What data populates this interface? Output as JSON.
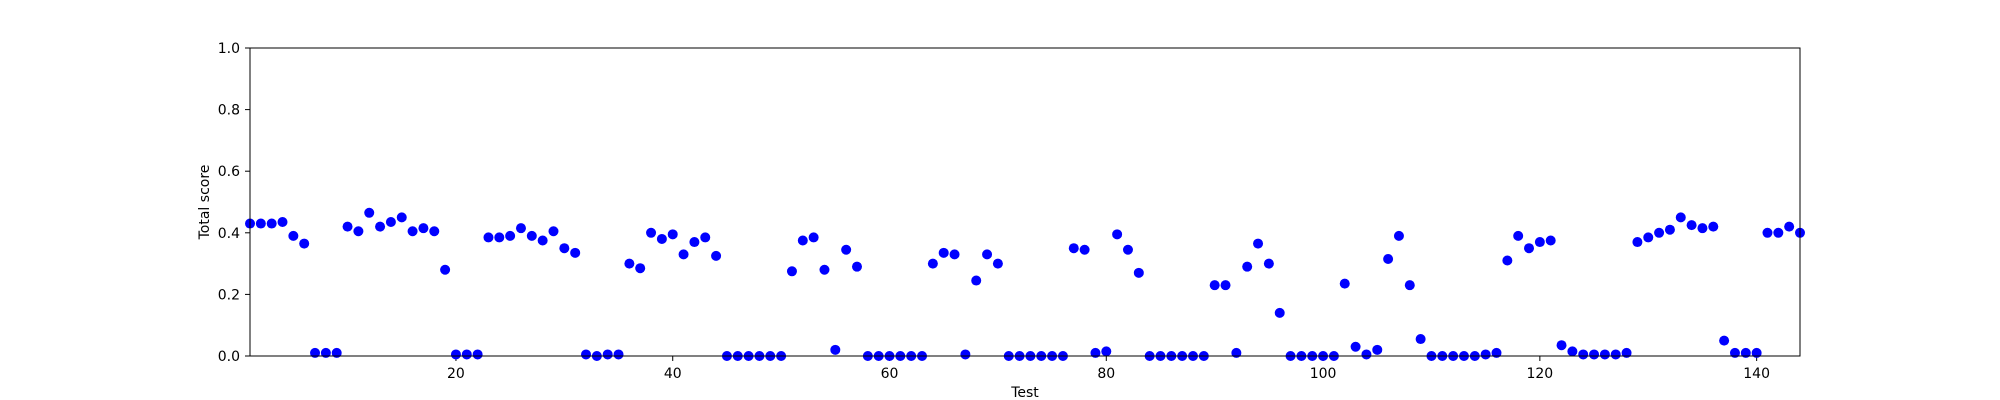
{
  "chart_data": {
    "type": "scatter",
    "xlabel": "Test",
    "ylabel": "Total score",
    "xlim": [
      1,
      144
    ],
    "ylim": [
      0.0,
      1.0
    ],
    "xticks": [
      20,
      40,
      60,
      80,
      100,
      120,
      140
    ],
    "xtick_labels": [
      "20",
      "40",
      "60",
      "80",
      "100",
      "120",
      "140"
    ],
    "yticks": [
      0.0,
      0.2,
      0.4,
      0.6,
      0.8,
      1.0
    ],
    "ytick_labels": [
      "0.0",
      "0.2",
      "0.4",
      "0.6",
      "0.8",
      "1.0"
    ],
    "grid": false,
    "marker_color": "#0000ff",
    "series": [
      {
        "x": [
          1,
          2,
          3,
          4,
          5,
          6,
          7,
          8,
          9,
          10,
          11,
          12,
          13,
          14,
          15,
          16,
          17,
          18,
          19,
          20,
          21,
          22,
          23,
          24,
          25,
          26,
          27,
          28,
          29,
          30,
          31,
          32,
          33,
          34,
          35,
          36,
          37,
          38,
          39,
          40,
          41,
          42,
          43,
          44,
          45,
          46,
          47,
          48,
          49,
          50,
          51,
          52,
          53,
          54,
          55,
          56,
          57,
          58,
          59,
          60,
          61,
          62,
          63,
          64,
          65,
          66,
          67,
          68,
          69,
          70,
          71,
          72,
          73,
          74,
          75,
          76,
          77,
          78,
          79,
          80,
          81,
          82,
          83,
          84,
          85,
          86,
          87,
          88,
          89,
          90,
          91,
          92,
          93,
          94,
          95,
          96,
          97,
          98,
          99,
          100,
          101,
          102,
          103,
          104,
          105,
          106,
          107,
          108,
          109,
          110,
          111,
          112,
          113,
          114,
          115,
          116,
          117,
          118,
          119,
          120,
          121,
          122,
          123,
          124,
          125,
          126,
          127,
          128,
          129,
          130,
          131,
          132,
          133,
          134,
          135,
          136,
          137,
          138,
          139,
          140,
          141,
          142,
          143,
          144
        ],
        "y": [
          0.43,
          0.43,
          0.43,
          0.435,
          0.39,
          0.365,
          0.01,
          0.01,
          0.01,
          0.42,
          0.405,
          0.465,
          0.42,
          0.435,
          0.45,
          0.405,
          0.415,
          0.405,
          0.28,
          0.005,
          0.005,
          0.005,
          0.385,
          0.385,
          0.39,
          0.415,
          0.39,
          0.375,
          0.405,
          0.35,
          0.335,
          0.005,
          0.0,
          0.005,
          0.005,
          0.3,
          0.285,
          0.4,
          0.38,
          0.395,
          0.33,
          0.37,
          0.385,
          0.325,
          0.0,
          0.0,
          0.0,
          0.0,
          0.0,
          0.0,
          0.275,
          0.375,
          0.385,
          0.28,
          0.02,
          0.345,
          0.29,
          0.0,
          0.0,
          0.0,
          0.0,
          0.0,
          0.0,
          0.3,
          0.335,
          0.33,
          0.005,
          0.245,
          0.33,
          0.3,
          0.0,
          0.0,
          0.0,
          0.0,
          0.0,
          0.0,
          0.35,
          0.345,
          0.01,
          0.015,
          0.395,
          0.345,
          0.27,
          0.0,
          0.0,
          0.0,
          0.0,
          0.0,
          0.0,
          0.23,
          0.23,
          0.01,
          0.29,
          0.365,
          0.3,
          0.14,
          0.0,
          0.0,
          0.0,
          0.0,
          0.0,
          0.235,
          0.03,
          0.005,
          0.02,
          0.315,
          0.39,
          0.23,
          0.055,
          0.0,
          0.0,
          0.0,
          0.0,
          0.0,
          0.005,
          0.01,
          0.31,
          0.39,
          0.35,
          0.37,
          0.375,
          0.035,
          0.015,
          0.005,
          0.005,
          0.005,
          0.005,
          0.01,
          0.37,
          0.385,
          0.4,
          0.41,
          0.45,
          0.425,
          0.415,
          0.42,
          0.05,
          0.01,
          0.01,
          0.01,
          0.4,
          0.4,
          0.42,
          0.4
        ]
      }
    ]
  }
}
